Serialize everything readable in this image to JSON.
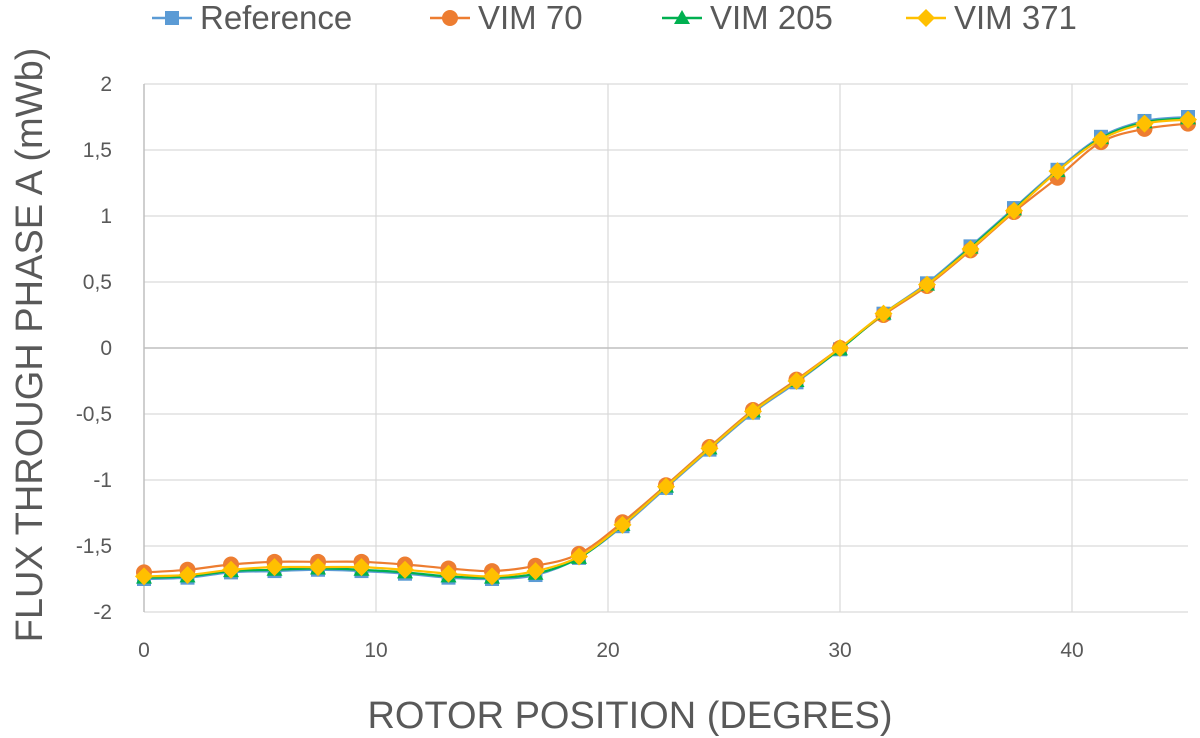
{
  "chart_data": {
    "type": "line",
    "xlabel": "ROTOR POSITION (DEGRES)",
    "ylabel": "FLUX THROUGH PHASE A (mWb)",
    "xlim": [
      0,
      45
    ],
    "ylim": [
      -2,
      2
    ],
    "x_ticks": [
      "0",
      "10",
      "20",
      "30",
      "40"
    ],
    "y_ticks": [
      "2",
      "1,5",
      "1",
      "0,5",
      "0",
      "-0,5",
      "-1",
      "-1,5",
      "-2"
    ],
    "grid": "vertical and horizontal",
    "legend_position": "top",
    "x": [
      0,
      1.875,
      3.75,
      5.625,
      7.5,
      9.375,
      11.25,
      13.125,
      15,
      16.875,
      18.75,
      20.625,
      22.5,
      24.375,
      26.25,
      28.125,
      30,
      31.875,
      33.75,
      35.625,
      37.5,
      39.375,
      41.25,
      43.125,
      45
    ],
    "series": [
      {
        "name": "Reference",
        "color": "#5B9BD5",
        "marker": "square",
        "values": [
          -1.75,
          -1.74,
          -1.7,
          -1.69,
          -1.68,
          -1.69,
          -1.71,
          -1.74,
          -1.75,
          -1.72,
          -1.59,
          -1.35,
          -1.06,
          -0.77,
          -0.49,
          -0.26,
          -0.01,
          0.26,
          0.49,
          0.77,
          1.06,
          1.35,
          1.6,
          1.72,
          1.75
        ]
      },
      {
        "name": "VIM 70",
        "color": "#ED7D31",
        "marker": "circle",
        "values": [
          -1.7,
          -1.68,
          -1.64,
          -1.62,
          -1.62,
          -1.62,
          -1.64,
          -1.67,
          -1.69,
          -1.65,
          -1.56,
          -1.32,
          -1.04,
          -0.75,
          -0.47,
          -0.24,
          0.0,
          0.25,
          0.47,
          0.74,
          1.03,
          1.29,
          1.56,
          1.66,
          1.7
        ]
      },
      {
        "name": "VIM 205",
        "color": "#00B050",
        "marker": "triangle",
        "values": [
          -1.74,
          -1.73,
          -1.69,
          -1.68,
          -1.67,
          -1.68,
          -1.7,
          -1.73,
          -1.74,
          -1.71,
          -1.59,
          -1.34,
          -1.05,
          -0.76,
          -0.48,
          -0.25,
          -0.01,
          0.26,
          0.48,
          0.76,
          1.05,
          1.34,
          1.59,
          1.71,
          1.74
        ]
      },
      {
        "name": "VIM 371",
        "color": "#FFC000",
        "marker": "diamond",
        "values": [
          -1.73,
          -1.72,
          -1.68,
          -1.66,
          -1.66,
          -1.66,
          -1.68,
          -1.71,
          -1.73,
          -1.69,
          -1.58,
          -1.34,
          -1.05,
          -0.76,
          -0.48,
          -0.25,
          0.0,
          0.26,
          0.48,
          0.75,
          1.04,
          1.34,
          1.58,
          1.7,
          1.73
        ]
      }
    ]
  }
}
